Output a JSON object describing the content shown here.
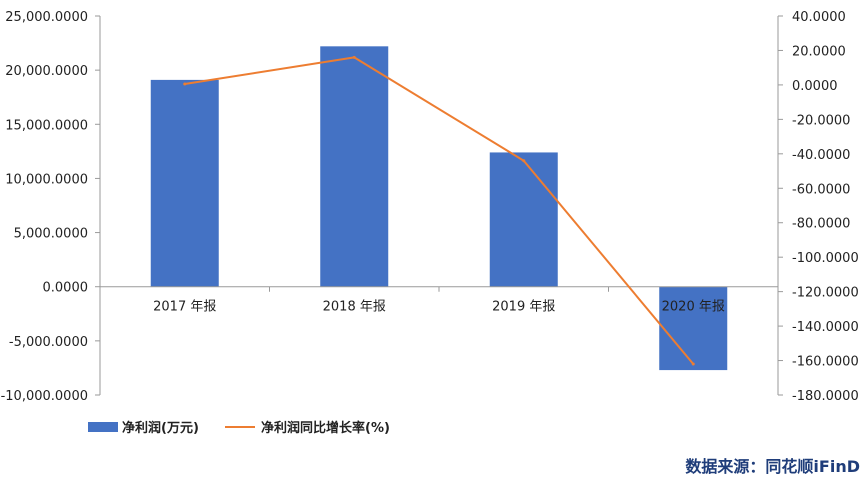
{
  "chart_data": {
    "type": "bar",
    "categories": [
      "2017 年报",
      "2018 年报",
      "2019 年报",
      "2020 年报"
    ],
    "series": [
      {
        "name": "净利润(万元)",
        "type": "bar",
        "axis": "left",
        "color": "#4472C4",
        "values": [
          19100,
          22200,
          12400,
          -7700
        ]
      },
      {
        "name": "净利润同比增长率(%)",
        "type": "line",
        "axis": "right",
        "color": "#ED7D31",
        "values": [
          0.5,
          16.0,
          -44.0,
          -162.0
        ]
      }
    ],
    "y_left": {
      "ylim": [
        -10000,
        25000
      ],
      "ticks": [
        "25,000.0000",
        "20,000.0000",
        "15,000.0000",
        "10,000.0000",
        "5,000.0000",
        "0.0000",
        "-5,000.0000",
        "-10,000.0000"
      ],
      "tick_values": [
        25000,
        20000,
        15000,
        10000,
        5000,
        0,
        -5000,
        -10000
      ]
    },
    "y_right": {
      "ylim": [
        -180,
        40
      ],
      "ticks": [
        "40.0000",
        "20.0000",
        "0.0000",
        "-20.0000",
        "-40.0000",
        "-60.0000",
        "-80.0000",
        "-100.0000",
        "-120.0000",
        "-140.0000",
        "-160.0000",
        "-180.0000"
      ],
      "tick_values": [
        40,
        20,
        0,
        -20,
        -40,
        -60,
        -80,
        -100,
        -120,
        -140,
        -160,
        -180
      ]
    },
    "grid": false,
    "legend": "bottom-left"
  },
  "source_text": "数据来源：同花顺iFinD"
}
